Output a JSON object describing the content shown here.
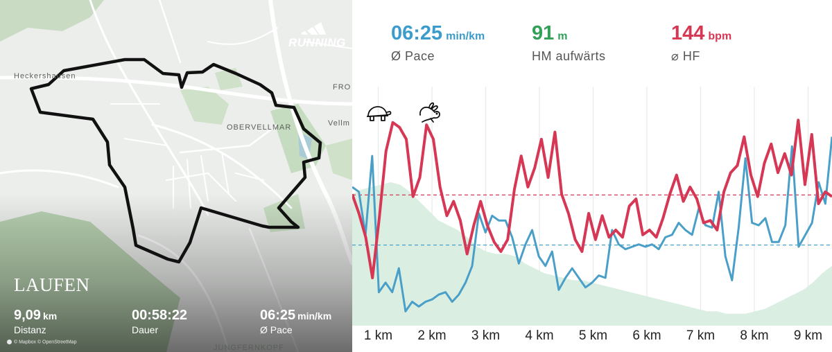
{
  "map": {
    "brand_word": "RUNNING",
    "places": [
      "Heckershausen",
      "OBERVELLMAR",
      "Vellm",
      "FRO",
      "JUNGFERNKOPF"
    ],
    "activity_title": "LAUFEN",
    "stats": [
      {
        "value": "9,09",
        "unit": "km",
        "label": "Distanz"
      },
      {
        "value": "00:58:22",
        "unit": "",
        "label": "Dauer"
      },
      {
        "value": "06:25",
        "unit": "min/km",
        "label": "Ø Pace"
      }
    ],
    "attribution": "© Mapbox  © OpenStreetMap",
    "route_color": "#111111"
  },
  "summary": [
    {
      "value": "06:25",
      "unit": "min/km",
      "label": "Ø Pace",
      "color": "#3b9ccc"
    },
    {
      "value": "91",
      "unit": "m",
      "label": "HM aufwärts",
      "color": "#33a05a"
    },
    {
      "value": "144",
      "unit": "bpm",
      "label": "⌀ HF",
      "color": "#d63754"
    }
  ],
  "icons": [
    "turtle-icon",
    "rabbit-icon"
  ],
  "chart_data": {
    "type": "line",
    "xlabel": "",
    "ylabel": "",
    "x_ticks": [
      "1 km",
      "2 km",
      "3 km",
      "4 km",
      "5 km",
      "6 km",
      "7 km",
      "8 km",
      "9 km"
    ],
    "x_range": [
      0,
      9.09
    ],
    "grid": "vertical",
    "series": [
      {
        "kind": "pace",
        "color": "#4a9fc8",
        "average_line": true,
        "values": [
          0.42,
          0.44,
          0.62,
          0.29,
          0.86,
          0.82,
          0.86,
          0.76,
          0.94,
          0.9,
          0.92,
          0.9,
          0.89,
          0.87,
          0.86,
          0.9,
          0.87,
          0.82,
          0.75,
          0.53,
          0.61,
          0.54,
          0.56,
          0.56,
          0.63,
          0.74,
          0.66,
          0.6,
          0.71,
          0.75,
          0.69,
          0.85,
          0.8,
          0.76,
          0.8,
          0.84,
          0.82,
          0.79,
          0.8,
          0.6,
          0.66,
          0.68,
          0.67,
          0.66,
          0.67,
          0.66,
          0.68,
          0.63,
          0.62,
          0.57,
          0.6,
          0.62,
          0.51,
          0.58,
          0.59,
          0.44,
          0.71,
          0.81,
          0.59,
          0.3,
          0.57,
          0.58,
          0.55,
          0.65,
          0.65,
          0.58,
          0.25,
          0.67,
          0.62,
          0.57,
          0.4,
          0.49,
          0.21
        ]
      },
      {
        "kind": "heart_rate",
        "color": "#d63754",
        "average_line": true,
        "values": [
          0.45,
          0.53,
          0.63,
          0.8,
          0.55,
          0.27,
          0.15,
          0.17,
          0.22,
          0.46,
          0.38,
          0.16,
          0.22,
          0.42,
          0.54,
          0.48,
          0.56,
          0.7,
          0.58,
          0.48,
          0.58,
          0.65,
          0.69,
          0.64,
          0.43,
          0.29,
          0.42,
          0.34,
          0.22,
          0.38,
          0.19,
          0.45,
          0.53,
          0.64,
          0.69,
          0.53,
          0.64,
          0.54,
          0.63,
          0.6,
          0.63,
          0.5,
          0.47,
          0.62,
          0.6,
          0.63,
          0.55,
          0.45,
          0.37,
          0.48,
          0.42,
          0.47,
          0.57,
          0.56,
          0.6,
          0.44,
          0.36,
          0.33,
          0.21,
          0.37,
          0.46,
          0.32,
          0.24,
          0.36,
          0.28,
          0.37,
          0.14,
          0.41,
          0.2,
          0.49,
          0.44,
          0.46
        ]
      },
      {
        "kind": "elevation",
        "color": "#daeee2",
        "average_line": false,
        "values": [
          0.55,
          0.57,
          0.58,
          0.59,
          0.6,
          0.59,
          0.56,
          0.52,
          0.48,
          0.44,
          0.42,
          0.4,
          0.37,
          0.33,
          0.31,
          0.3,
          0.3,
          0.29,
          0.26,
          0.24,
          0.22,
          0.21,
          0.2,
          0.19,
          0.19,
          0.18,
          0.17,
          0.16,
          0.15,
          0.14,
          0.13,
          0.12,
          0.11,
          0.1,
          0.09,
          0.08,
          0.07,
          0.06,
          0.06,
          0.05,
          0.05,
          0.05,
          0.06,
          0.07,
          0.09,
          0.11,
          0.13,
          0.15,
          0.18,
          0.22,
          0.25
        ]
      }
    ]
  }
}
